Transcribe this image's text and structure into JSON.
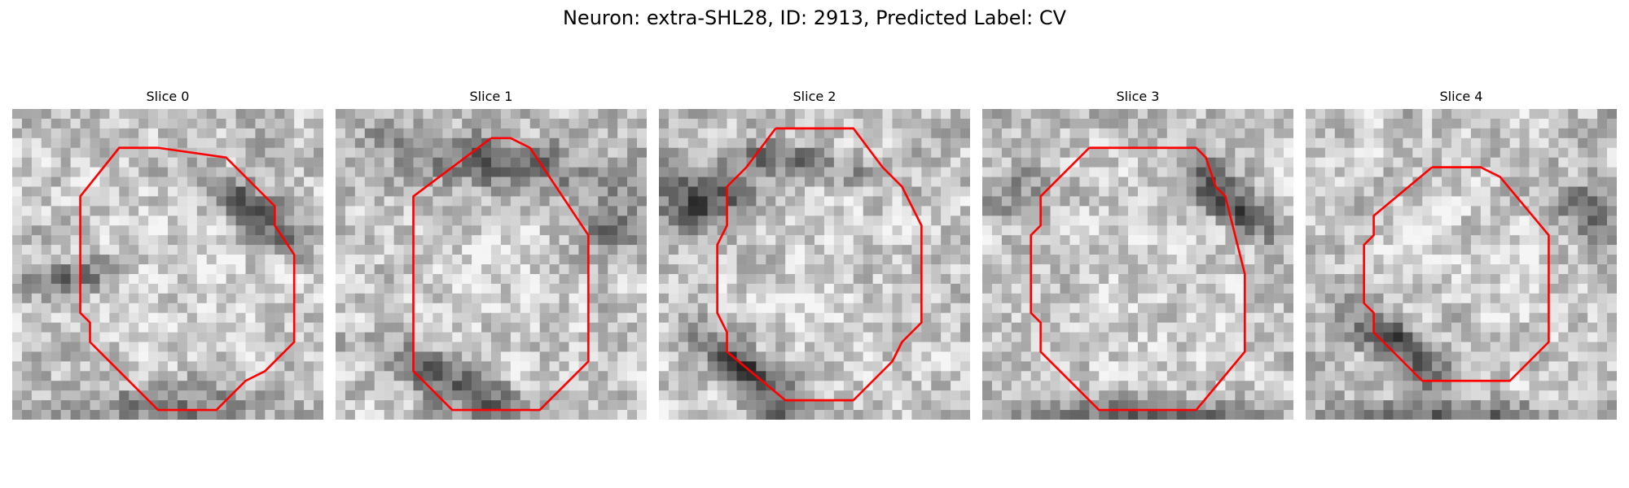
{
  "figure": {
    "title": "Neuron: extra-SHL28, ID: 2913, Predicted Label: CV",
    "outline_color": "#ff0000"
  },
  "panels": [
    {
      "title": "Slice 0",
      "seed": 11,
      "dark": "upper-right band and lower-left",
      "outline": [
        [
          14,
          4
        ],
        [
          11,
          4
        ],
        [
          7,
          9
        ],
        [
          7,
          21
        ],
        [
          8,
          22
        ],
        [
          8,
          24
        ],
        [
          15,
          31
        ],
        [
          21,
          31
        ],
        [
          24,
          28
        ],
        [
          26,
          27
        ],
        [
          29,
          24
        ],
        [
          29,
          15
        ],
        [
          27,
          12
        ],
        [
          27,
          10
        ],
        [
          25,
          8
        ],
        [
          22,
          5
        ],
        [
          15,
          4
        ]
      ]
    },
    {
      "title": "Slice 1",
      "seed": 23,
      "dark": "upper band and lower-left",
      "outline": [
        [
          16,
          3
        ],
        [
          8,
          9
        ],
        [
          8,
          27
        ],
        [
          12,
          31
        ],
        [
          21,
          31
        ],
        [
          23,
          29
        ],
        [
          26,
          26
        ],
        [
          26,
          13
        ],
        [
          24,
          10
        ],
        [
          22,
          7
        ],
        [
          20,
          4
        ],
        [
          18,
          3
        ]
      ]
    },
    {
      "title": "Slice 2",
      "seed": 37,
      "dark": "left band and bottom-left",
      "outline": [
        [
          12,
          2
        ],
        [
          9,
          6
        ],
        [
          7,
          8
        ],
        [
          7,
          12
        ],
        [
          6,
          14
        ],
        [
          6,
          21
        ],
        [
          7,
          23
        ],
        [
          7,
          25
        ],
        [
          13,
          30
        ],
        [
          20,
          30
        ],
        [
          24,
          26
        ],
        [
          25,
          24
        ],
        [
          27,
          22
        ],
        [
          27,
          12
        ],
        [
          25,
          8
        ],
        [
          23,
          6
        ],
        [
          20,
          2
        ]
      ]
    },
    {
      "title": "Slice 3",
      "seed": 53,
      "dark": "upper-right and bottom",
      "outline": [
        [
          11,
          4
        ],
        [
          6,
          9
        ],
        [
          6,
          12
        ],
        [
          5,
          13
        ],
        [
          5,
          21
        ],
        [
          6,
          22
        ],
        [
          6,
          25
        ],
        [
          12,
          31
        ],
        [
          22,
          31
        ],
        [
          27,
          25
        ],
        [
          27,
          17
        ],
        [
          26,
          13
        ],
        [
          25,
          9
        ],
        [
          24,
          8
        ],
        [
          23,
          5
        ],
        [
          22,
          4
        ]
      ]
    },
    {
      "title": "Slice 4",
      "seed": 71,
      "dark": "lower-left and top-right",
      "outline": [
        [
          13,
          6
        ],
        [
          7,
          11
        ],
        [
          7,
          13
        ],
        [
          6,
          14
        ],
        [
          6,
          20
        ],
        [
          7,
          21
        ],
        [
          7,
          23
        ],
        [
          12,
          28
        ],
        [
          21,
          28
        ],
        [
          25,
          24
        ],
        [
          25,
          13
        ],
        [
          20,
          7
        ],
        [
          18,
          6
        ]
      ]
    }
  ]
}
